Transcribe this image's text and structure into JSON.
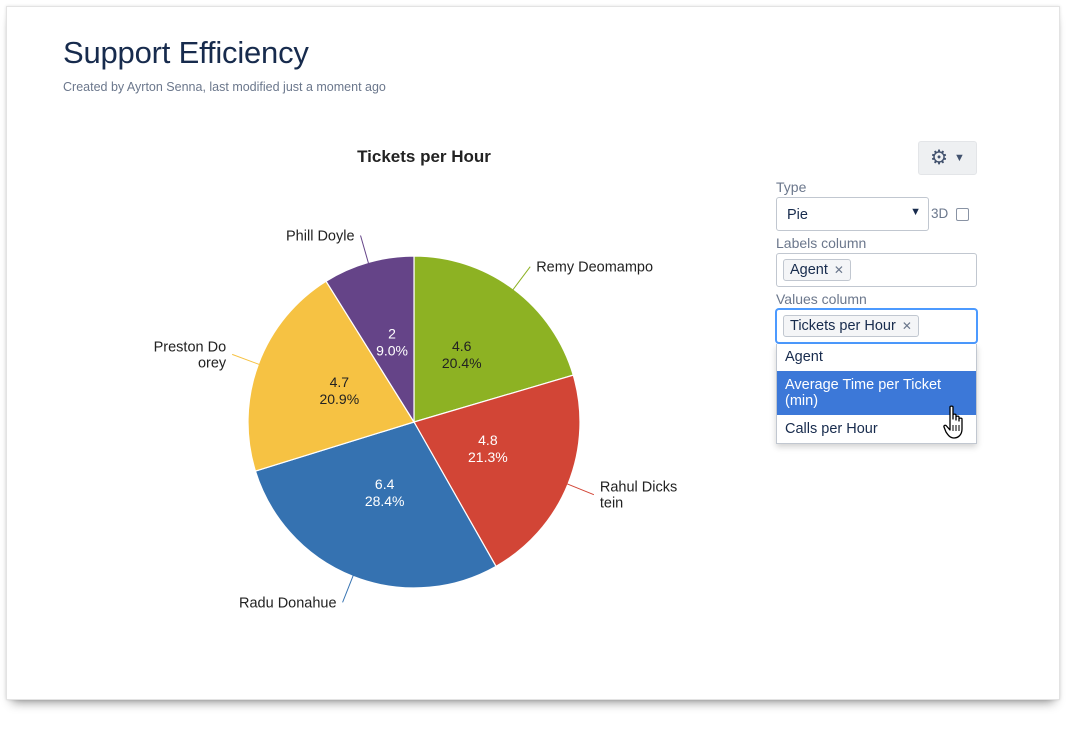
{
  "page": {
    "title": "Support Efficiency",
    "meta": "Created by Ayrton Senna, last modified just a moment ago"
  },
  "chart_data": {
    "type": "pie",
    "title": "Tickets per Hour",
    "slices": [
      {
        "label": "Remy Deomampo",
        "label_lines": [
          "Remy Deomampo"
        ],
        "value": 4.6,
        "value_text": "4.6",
        "percent": "20.4%",
        "color": "#8db223"
      },
      {
        "label": "Rahul Dickstein",
        "label_lines": [
          "Rahul Dicks",
          "tein"
        ],
        "value": 4.8,
        "value_text": "4.8",
        "percent": "21.3%",
        "color": "#d24536"
      },
      {
        "label": "Radu Donahue",
        "label_lines": [
          "Radu Donahue"
        ],
        "value": 6.4,
        "value_text": "6.4",
        "percent": "28.4%",
        "color": "#3572b1"
      },
      {
        "label": "Preston Doorey",
        "label_lines": [
          "Preston Do",
          "orey"
        ],
        "value": 4.7,
        "value_text": "4.7",
        "percent": "20.9%",
        "color": "#f6c243"
      },
      {
        "label": "Phill Doyle",
        "label_lines": [
          "Phill Doyle"
        ],
        "value": 2,
        "value_text": "2",
        "percent": "9.0%",
        "color": "#654488"
      }
    ]
  },
  "settings": {
    "gear_icon": "gear-icon",
    "type_label": "Type",
    "type_value": "Pie",
    "threed_label": "3D",
    "threed_checked": false,
    "labels_column_label": "Labels column",
    "labels_column_value": "Agent",
    "values_column_label": "Values column",
    "values_column_value": "Tickets per Hour",
    "options": [
      "Agent",
      "Average Time per Ticket (min)",
      "Calls per Hour"
    ],
    "highlighted_option": "Average Time per Ticket (min)",
    "highlight_color": "#3c78d8"
  }
}
